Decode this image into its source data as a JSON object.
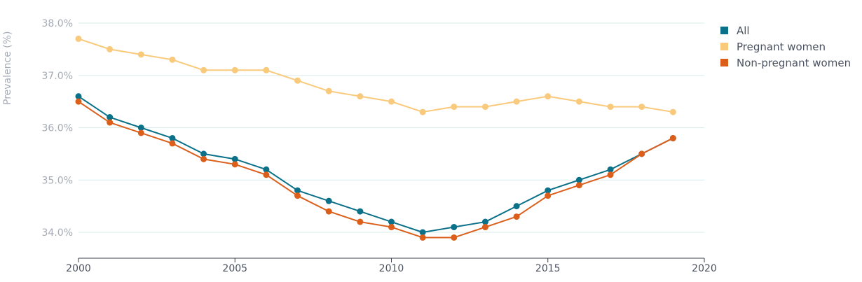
{
  "chart_data": {
    "type": "line",
    "title": "",
    "xlabel": "",
    "ylabel": "Prevalence (%)",
    "xlim": [
      2000,
      2020
    ],
    "ylim": [
      33.5,
      38.1
    ],
    "x_ticks": [
      {
        "value": 2000,
        "label": "2000"
      },
      {
        "value": 2005,
        "label": "2005"
      },
      {
        "value": 2010,
        "label": "2010"
      },
      {
        "value": 2015,
        "label": "2015"
      },
      {
        "value": 2020,
        "label": "2020"
      }
    ],
    "y_ticks": [
      {
        "value": 34,
        "label": "34.0%"
      },
      {
        "value": 35,
        "label": "35.0%"
      },
      {
        "value": 36,
        "label": "36.0%"
      },
      {
        "value": 37,
        "label": "37.0%"
      },
      {
        "value": 38,
        "label": "38.0%"
      }
    ],
    "grid": "horizontal",
    "legend_position": "top-right",
    "x": [
      2000,
      2001,
      2002,
      2003,
      2004,
      2005,
      2006,
      2007,
      2008,
      2009,
      2010,
      2011,
      2012,
      2013,
      2014,
      2015,
      2016,
      2017,
      2018,
      2019
    ],
    "series": [
      {
        "name": "Pregnant women",
        "color": "#f9c97c",
        "values": [
          37.7,
          37.5,
          37.4,
          37.3,
          37.1,
          37.1,
          37.1,
          36.9,
          36.7,
          36.6,
          36.5,
          36.3,
          36.4,
          36.4,
          36.5,
          36.6,
          36.5,
          36.4,
          36.4,
          36.3
        ]
      },
      {
        "name": "All",
        "color": "#0b7189",
        "values": [
          36.6,
          36.2,
          36.0,
          35.8,
          35.5,
          35.4,
          35.2,
          34.8,
          34.6,
          34.4,
          34.2,
          34.0,
          34.1,
          34.2,
          34.5,
          34.8,
          35.0,
          35.2,
          35.5,
          35.8
        ]
      },
      {
        "name": "Non-pregnant women",
        "color": "#db5f1b",
        "values": [
          36.5,
          36.1,
          35.9,
          35.7,
          35.4,
          35.3,
          35.1,
          34.7,
          34.4,
          34.2,
          34.1,
          33.9,
          33.9,
          34.1,
          34.3,
          34.7,
          34.9,
          35.1,
          35.5,
          35.8
        ]
      }
    ]
  },
  "legend": [
    {
      "label": "All",
      "color": "#0b7189"
    },
    {
      "label": "Pregnant women",
      "color": "#f9c97c"
    },
    {
      "label": "Non-pregnant women",
      "color": "#db5f1b"
    }
  ]
}
